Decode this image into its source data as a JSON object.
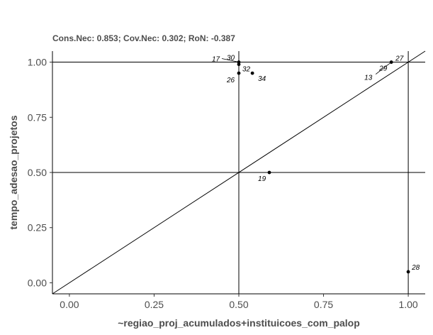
{
  "chart_data": {
    "type": "scatter",
    "subtitle": "Cons.Nec: 0.853; Cov.Nec: 0.302; RoN: -0.387",
    "xlabel": "~regiao_proj_acumulados+instituicoes_com_palop",
    "ylabel": "tempo_adesao_projetos",
    "xlim": [
      -0.05,
      1.05
    ],
    "ylim": [
      -0.05,
      1.05
    ],
    "x_ticks": [
      "0.00",
      "0.25",
      "0.50",
      "0.75",
      "1.00"
    ],
    "y_ticks": [
      "0.00",
      "0.25",
      "0.50",
      "0.75",
      "1.00"
    ],
    "grid": false,
    "reference_lines": {
      "vertical": [
        0.5,
        1.0
      ],
      "horizontal": [
        0.5,
        1.0
      ],
      "diagonal": true
    },
    "points": [
      {
        "label": "17",
        "x": 0.5,
        "y": 1.0
      },
      {
        "label": "30",
        "x": 0.5,
        "y": 1.0
      },
      {
        "label": "32",
        "x": 0.5,
        "y": 0.99
      },
      {
        "label": "26",
        "x": 0.5,
        "y": 0.95
      },
      {
        "label": "34",
        "x": 0.54,
        "y": 0.95
      },
      {
        "label": "27",
        "x": 0.95,
        "y": 1.0
      },
      {
        "label": "29",
        "x": 0.95,
        "y": 1.0
      },
      {
        "label": "13",
        "x": 0.95,
        "y": 1.0
      },
      {
        "label": "19",
        "x": 0.59,
        "y": 0.5
      },
      {
        "label": "28",
        "x": 1.0,
        "y": 0.05
      }
    ]
  }
}
